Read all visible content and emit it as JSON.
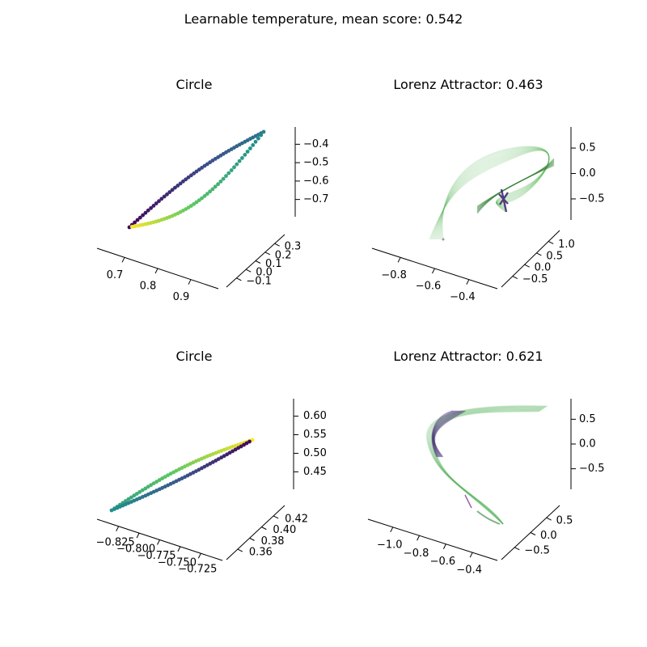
{
  "figure": {
    "suptitle": "Learnable temperature, mean score: 0.542"
  },
  "chart_data": [
    {
      "type": "scatter",
      "projection": "3d",
      "title": "Circle",
      "colormap": "viridis",
      "x_ticks": [
        "0.7",
        "0.8",
        "0.9"
      ],
      "y_ticks": [
        "−0.1",
        "0.0",
        "0.1",
        "0.2",
        "0.3"
      ],
      "z_ticks": [
        "−0.4",
        "−0.5",
        "−0.6",
        "−0.7"
      ],
      "xlim": [
        0.63,
        0.92
      ],
      "ylim": [
        -0.12,
        0.35
      ],
      "zlim": [
        -0.78,
        -0.36
      ],
      "points": 100,
      "curve": "closed loop running from the upper-right corner down to the lower-left end and back"
    },
    {
      "type": "line",
      "projection": "3d",
      "title": "Lorenz Attractor: 0.463",
      "colormap": "greens (faint) with dark purple core",
      "x_ticks": [
        "−0.8",
        "−0.6",
        "−0.4"
      ],
      "y_ticks": [
        "−0.5",
        "0.0",
        "0.5",
        "1.0"
      ],
      "z_ticks": [
        "0.5",
        "0.0",
        "−0.5"
      ],
      "xlim": [
        -0.95,
        -0.3
      ],
      "ylim": [
        -0.7,
        1.1
      ],
      "zlim": [
        -0.7,
        0.9
      ]
    },
    {
      "type": "scatter",
      "projection": "3d",
      "title": "Circle",
      "colormap": "viridis",
      "x_ticks": [
        "−0.825",
        "−0.800",
        "−0.775",
        "−0.750",
        "−0.725"
      ],
      "y_ticks": [
        "0.36",
        "0.38",
        "0.40",
        "0.42"
      ],
      "z_ticks": [
        "0.60",
        "0.55",
        "0.50",
        "0.45"
      ],
      "xlim": [
        -0.835,
        -0.715
      ],
      "ylim": [
        0.35,
        0.43
      ],
      "zlim": [
        0.42,
        0.61
      ],
      "points": 100,
      "curve": "flattened closed loop along a diagonal"
    },
    {
      "type": "line",
      "projection": "3d",
      "title": "Lorenz Attractor: 0.621",
      "colormap": "greens (faint) with dark purple core",
      "x_ticks": [
        "−1.0",
        "−0.8",
        "−0.6",
        "−0.4"
      ],
      "y_ticks": [
        "−0.5",
        "0.0",
        "0.5"
      ],
      "z_ticks": [
        "0.5",
        "0.0",
        "−0.5"
      ],
      "xlim": [
        -1.05,
        -0.3
      ],
      "ylim": [
        -0.7,
        0.75
      ],
      "zlim": [
        -0.9,
        0.75
      ]
    }
  ]
}
